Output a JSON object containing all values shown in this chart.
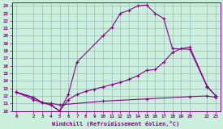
{
  "xlabel": "Windchill (Refroidissement éolien,°C)",
  "bg_color": "#cceedd",
  "line_color": "#880088",
  "grid_color": "#99bbbb",
  "xlim": [
    -0.5,
    23.5
  ],
  "ylim": [
    10,
    24.4
  ],
  "xticks": [
    0,
    2,
    3,
    4,
    5,
    6,
    7,
    8,
    9,
    10,
    11,
    12,
    13,
    14,
    15,
    16,
    17,
    18,
    19,
    20,
    22,
    23
  ],
  "yticks": [
    10,
    11,
    12,
    13,
    14,
    15,
    16,
    17,
    18,
    19,
    20,
    21,
    22,
    23,
    24
  ],
  "line1_x": [
    0,
    2,
    3,
    4,
    5,
    6,
    7,
    10,
    11,
    12,
    13,
    14,
    15,
    16,
    17,
    18,
    20,
    22,
    23
  ],
  "line1_y": [
    12.5,
    11.8,
    11.1,
    10.8,
    10.0,
    12.2,
    16.5,
    20.0,
    21.1,
    23.0,
    23.4,
    24.0,
    24.1,
    23.0,
    22.3,
    18.3,
    18.2,
    13.2,
    12.0
  ],
  "line2_x": [
    0,
    2,
    3,
    4,
    5,
    6,
    7,
    8,
    9,
    10,
    11,
    12,
    13,
    14,
    15,
    16,
    17,
    18,
    19,
    20,
    22,
    23
  ],
  "line2_y": [
    12.5,
    11.8,
    11.1,
    10.8,
    10.0,
    11.5,
    12.2,
    12.6,
    12.9,
    13.2,
    13.5,
    13.8,
    14.2,
    14.7,
    15.4,
    15.5,
    16.5,
    17.8,
    18.3,
    18.5,
    13.3,
    12.0
  ],
  "line3_x": [
    0,
    2,
    3,
    4,
    5,
    10,
    15,
    20,
    22,
    23
  ],
  "line3_y": [
    12.5,
    11.5,
    11.1,
    11.0,
    10.8,
    11.3,
    11.6,
    11.9,
    12.0,
    11.8
  ]
}
